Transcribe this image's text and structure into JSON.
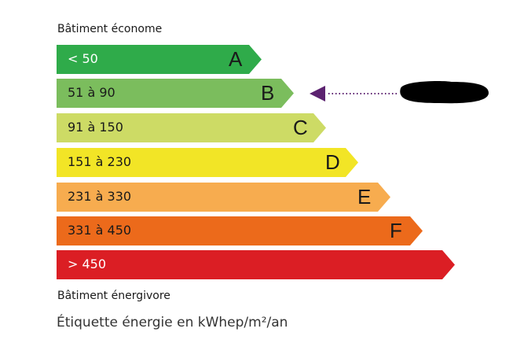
{
  "top_label": "Bâtiment économe",
  "bottom_label": "Bâtiment énergivore",
  "footer": "Étiquette énergie en kWhep/m²/an",
  "classes": [
    {
      "range": "< 50",
      "letter": "A",
      "color": "#2fab4a",
      "text_color": "#ffffff"
    },
    {
      "range": "51 à 90",
      "letter": "B",
      "color": "#7bbd5d",
      "text_color": "#1a1a1a"
    },
    {
      "range": "91 à 150",
      "letter": "C",
      "color": "#cddb65",
      "text_color": "#1a1a1a"
    },
    {
      "range": "151 à 230",
      "letter": "D",
      "color": "#f2e526",
      "text_color": "#1a1a1a"
    },
    {
      "range": "231 à 330",
      "letter": "E",
      "color": "#f7ac4f",
      "text_color": "#1a1a1a"
    },
    {
      "range": "331 à 450",
      "letter": "F",
      "color": "#ec6a1b",
      "text_color": "#1a1a1a"
    },
    {
      "range": "> 450",
      "letter": "",
      "color": "#db1e24",
      "text_color": "#ffffff"
    }
  ],
  "indicator": {
    "class": "B",
    "color": "#5c2270"
  }
}
